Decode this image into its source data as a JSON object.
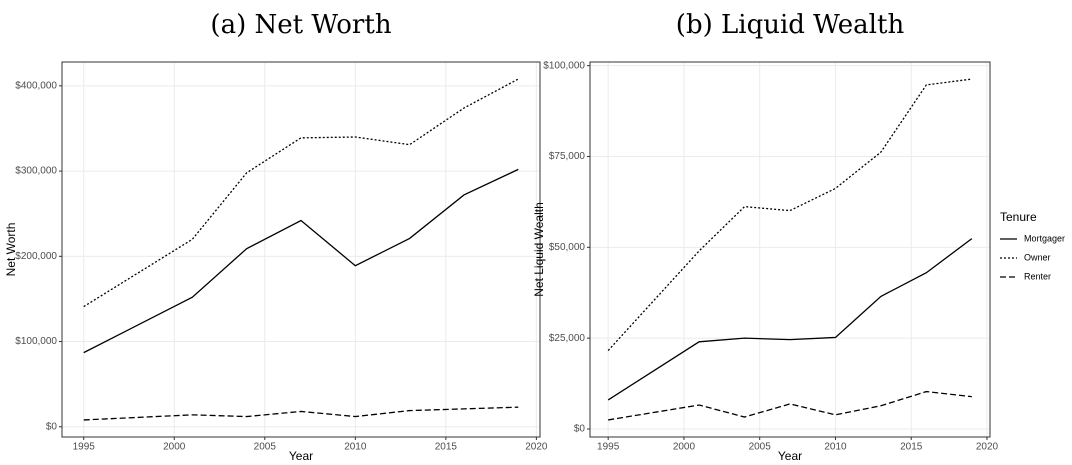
{
  "chart_data": [
    {
      "type": "line",
      "title": "(a) Net Worth",
      "xlabel": "Year",
      "ylabel": "Net Worth",
      "x": [
        1995,
        2001,
        2004,
        2007,
        2010,
        2013,
        2016,
        2019
      ],
      "xlim": [
        1993.8,
        2020.2
      ],
      "xticks": [
        1995,
        2000,
        2005,
        2010,
        2015,
        2020
      ],
      "ylim": [
        -12000,
        428000
      ],
      "yticks": [
        {
          "value": 0,
          "label": "$0"
        },
        {
          "value": 100000,
          "label": "$100,000"
        },
        {
          "value": 200000,
          "label": "$200,000"
        },
        {
          "value": 300000,
          "label": "$300,000"
        },
        {
          "value": 400000,
          "label": "$400,000"
        }
      ],
      "grid": true,
      "series": [
        {
          "name": "Mortgager",
          "color": "#000000",
          "linestyle": "solid",
          "values": [
            87000,
            152000,
            209000,
            242000,
            189000,
            221000,
            272000,
            302000
          ]
        },
        {
          "name": "Owner",
          "color": "#000000",
          "linestyle": "dotted",
          "values": [
            141000,
            220000,
            298000,
            339000,
            340000,
            331000,
            374000,
            408000
          ]
        },
        {
          "name": "Renter",
          "color": "#000000",
          "linestyle": "dashed",
          "values": [
            8000,
            14000,
            12000,
            18000,
            12000,
            19000,
            21000,
            23000
          ]
        }
      ]
    },
    {
      "type": "line",
      "title": "(b) Liquid Wealth",
      "xlabel": "Year",
      "ylabel": "Net Liquid Wealth",
      "legend_title": "Tenure",
      "legend": "right",
      "x": [
        1995,
        2001,
        2004,
        2007,
        2010,
        2013,
        2016,
        2019
      ],
      "xlim": [
        1993.8,
        2020.2
      ],
      "xticks": [
        1995,
        2000,
        2005,
        2010,
        2015,
        2020
      ],
      "ylim": [
        -2200,
        101000
      ],
      "yticks": [
        {
          "value": 0,
          "label": "$0"
        },
        {
          "value": 25000,
          "label": "$25,000"
        },
        {
          "value": 50000,
          "label": "$50,000"
        },
        {
          "value": 75000,
          "label": "$75,000"
        },
        {
          "value": 100000,
          "label": "$100,000"
        }
      ],
      "grid": true,
      "series": [
        {
          "name": "Mortgager",
          "color": "#000000",
          "linestyle": "solid",
          "values": [
            8000,
            24000,
            25000,
            24600,
            25200,
            36500,
            43000,
            52400
          ]
        },
        {
          "name": "Owner",
          "color": "#000000",
          "linestyle": "dotted",
          "values": [
            21600,
            49000,
            61200,
            60100,
            66200,
            76200,
            94700,
            96300
          ]
        },
        {
          "name": "Renter",
          "color": "#000000",
          "linestyle": "dashed",
          "values": [
            2500,
            6600,
            3300,
            6900,
            3900,
            6400,
            10300,
            8900
          ]
        }
      ]
    }
  ]
}
